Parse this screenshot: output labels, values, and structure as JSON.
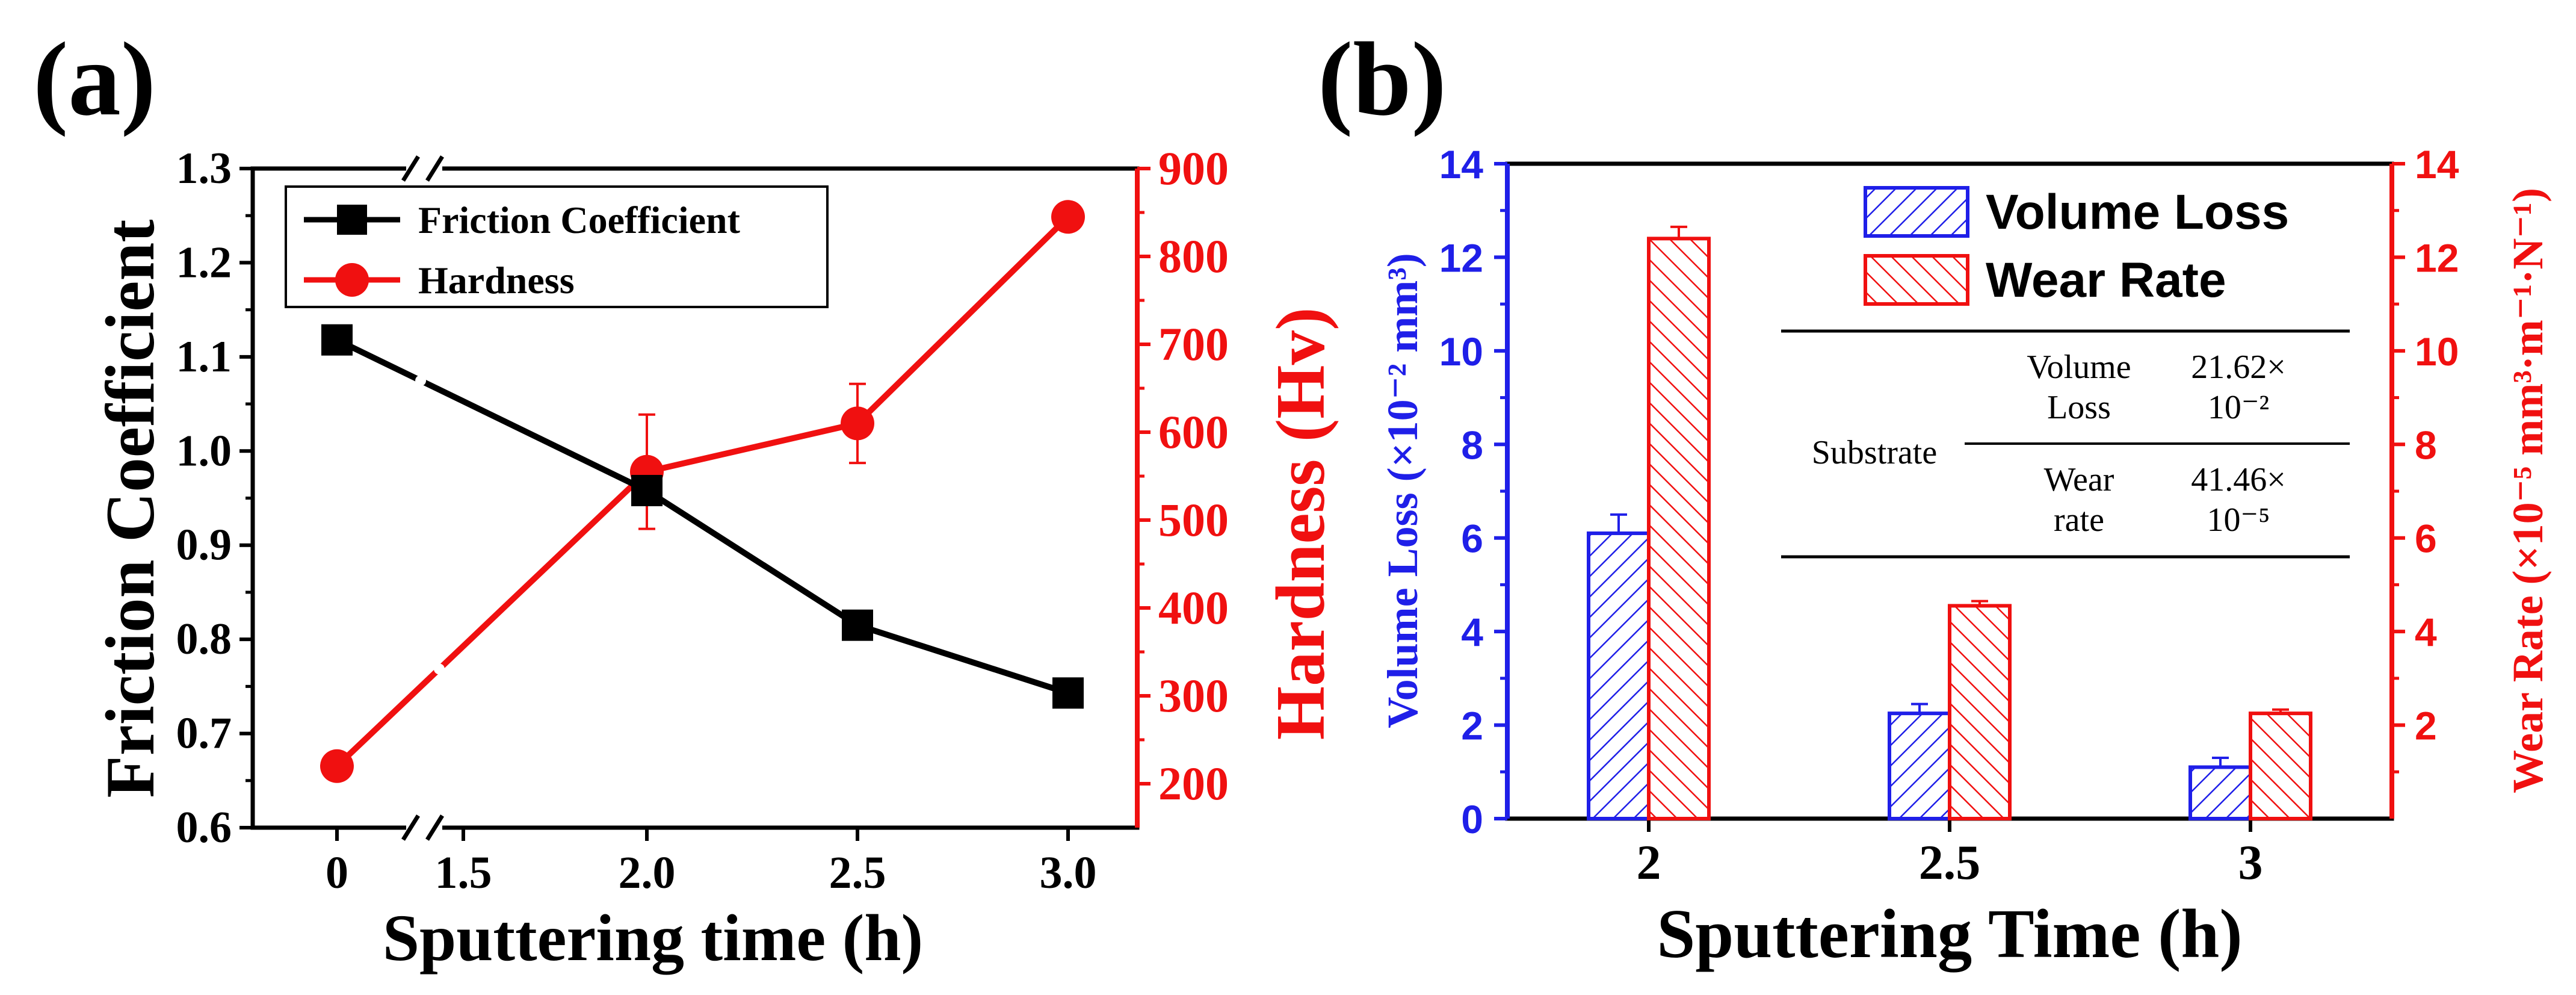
{
  "colors": {
    "black": "#000000",
    "red": "#f01010",
    "blue": "#1f1fe8",
    "white": "#ffffff"
  },
  "chart_data": [
    {
      "panel_label": "(a)",
      "type": "line",
      "xlabel": "Sputtering time (h)",
      "x_tick_labels": [
        "0",
        "1.5",
        "2.0",
        "2.5",
        "3.0"
      ],
      "x_axis_break": "between 0 and 1.5",
      "y_left": {
        "label": "Friction Coefficient",
        "lim": [
          0.6,
          1.3
        ],
        "ticks": [
          "0.6",
          "0.7",
          "0.8",
          "0.9",
          "1.0",
          "1.1",
          "1.2",
          "1.3"
        ]
      },
      "y_right": {
        "label": "Hardness (Hv)",
        "lim": [
          150,
          900
        ],
        "ticks": [
          "200",
          "300",
          "400",
          "500",
          "600",
          "700",
          "800",
          "900"
        ]
      },
      "legend": [
        "Friction Coefficient",
        "Hardness"
      ],
      "series": [
        {
          "name": "Friction Coefficient",
          "axis": "left",
          "marker": "square",
          "x": [
            "0",
            "2.0",
            "2.5",
            "3.0"
          ],
          "values": [
            1.118,
            0.958,
            0.815,
            0.743
          ]
        },
        {
          "name": "Hardness",
          "axis": "right",
          "marker": "circle",
          "x": [
            "0",
            "2.0",
            "2.5",
            "3.0"
          ],
          "values": [
            220,
            555,
            610,
            845
          ],
          "errors": [
            8,
            65,
            45,
            10
          ]
        }
      ]
    },
    {
      "panel_label": "(b)",
      "type": "bar",
      "xlabel": "Sputtering Time (h)",
      "categories": [
        "2",
        "2.5",
        "3"
      ],
      "y_left": {
        "label": "Volume Loss (×10⁻² mm³)",
        "lim": [
          0,
          14
        ],
        "ticks": [
          "0",
          "2",
          "4",
          "6",
          "8",
          "10",
          "12",
          "14"
        ]
      },
      "y_right": {
        "label": "Wear Rate (×10⁻⁵ mm³·m⁻¹·N⁻¹)",
        "lim": [
          0,
          14
        ],
        "ticks": [
          "2",
          "4",
          "6",
          "8",
          "10",
          "12",
          "14"
        ]
      },
      "legend": [
        "Volume Loss",
        "Wear Rate"
      ],
      "series": [
        {
          "name": "Volume Loss",
          "axis": "left",
          "values": [
            6.1,
            2.25,
            1.1
          ],
          "errors": [
            0.4,
            0.2,
            0.2
          ]
        },
        {
          "name": "Wear Rate",
          "axis": "right",
          "values": [
            12.4,
            4.55,
            2.25
          ],
          "errors": [
            0.25,
            0.1,
            0.08
          ]
        }
      ],
      "table": {
        "row_header": "Substrate",
        "rows": [
          {
            "name_lines": [
              "Volume",
              "Loss"
            ],
            "value_lines": [
              "21.62×",
              "10⁻²"
            ]
          },
          {
            "name_lines": [
              "Wear",
              "rate"
            ],
            "value_lines": [
              "41.46×",
              "10⁻⁵"
            ]
          }
        ]
      }
    }
  ]
}
